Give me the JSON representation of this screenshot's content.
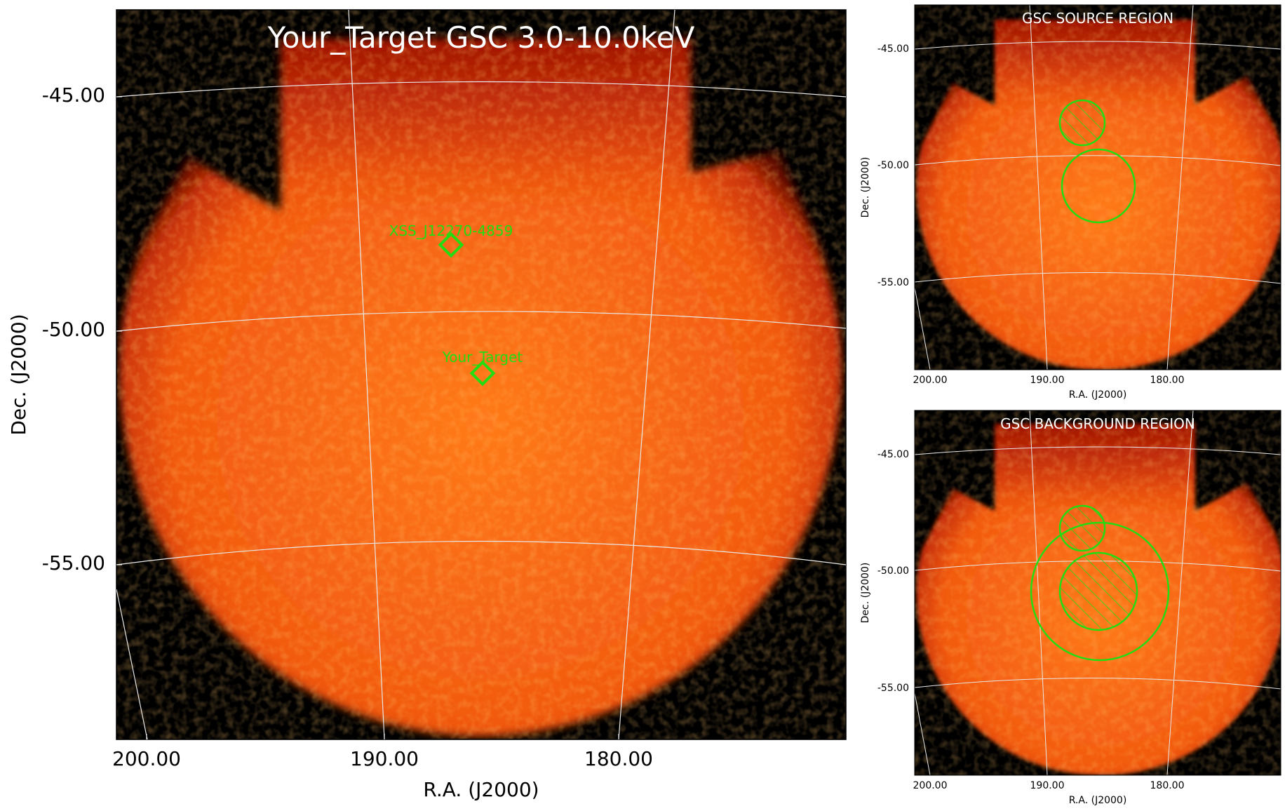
{
  "main_panel": {
    "title": "Your_Target GSC 3.0-10.0keV",
    "xlabel": "R.A. (J2000)",
    "ylabel": "Dec. (J2000)",
    "dec_ticks": [
      "-45.00",
      "-50.00",
      "-55.00"
    ],
    "ra_ticks": [
      "200.00",
      "190.00",
      "180.00"
    ],
    "sources": [
      {
        "label": "XSS_J12270-4859",
        "marker": "diamond"
      },
      {
        "label": "Your_Target",
        "marker": "diamond"
      }
    ]
  },
  "source_panel": {
    "title": "GSC SOURCE REGION",
    "xlabel": "R.A. (J2000)",
    "ylabel": "Dec. (J2000)",
    "dec_ticks": [
      "-45.00",
      "-50.00",
      "-55.00"
    ],
    "ra_ticks": [
      "200.00",
      "190.00",
      "180.00"
    ]
  },
  "background_panel": {
    "title": "GSC BACKGROUND REGION",
    "xlabel": "R.A. (J2000)",
    "ylabel": "Dec. (J2000)",
    "dec_ticks": [
      "-45.00",
      "-50.00",
      "-55.00"
    ],
    "ra_ticks": [
      "200.00",
      "190.00",
      "180.00"
    ]
  },
  "colors": {
    "image_core": "#ff6a14",
    "image_edge": "#b01800",
    "region_green": "#22dd11",
    "grid": "#e8e8e8"
  }
}
